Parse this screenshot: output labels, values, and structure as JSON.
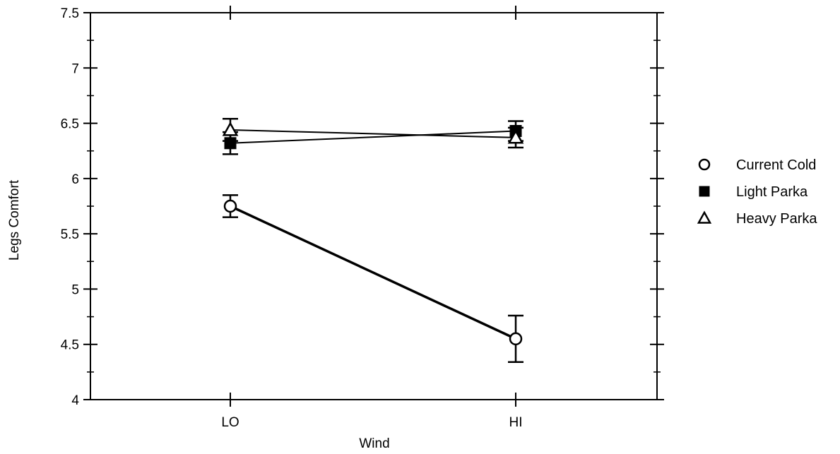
{
  "chart_data": {
    "type": "line",
    "title": "",
    "xlabel": "Wind",
    "ylabel": "Legs Comfort",
    "categories": [
      "LO",
      "HI"
    ],
    "ylim": [
      4,
      7.5
    ],
    "yticks": [
      "4",
      "4.5",
      "5",
      "5.5",
      "6",
      "6.5",
      "7",
      "7.5"
    ],
    "grid": false,
    "legend_position": "right",
    "series": [
      {
        "name": "Current Cold",
        "marker": "open-circle",
        "values": [
          5.75,
          4.55
        ],
        "errors": [
          0.1,
          0.21
        ],
        "line_weight": "thick",
        "color": "#000000"
      },
      {
        "name": "Light Parka",
        "marker": "filled-square",
        "values": [
          6.32,
          6.43
        ],
        "errors": [
          0.1,
          0.09
        ],
        "line_weight": "thin",
        "color": "#000000"
      },
      {
        "name": "Heavy Parka",
        "marker": "open-triangle",
        "values": [
          6.44,
          6.37
        ],
        "errors": [
          0.1,
          0.09
        ],
        "line_weight": "thin",
        "color": "#000000"
      }
    ]
  }
}
